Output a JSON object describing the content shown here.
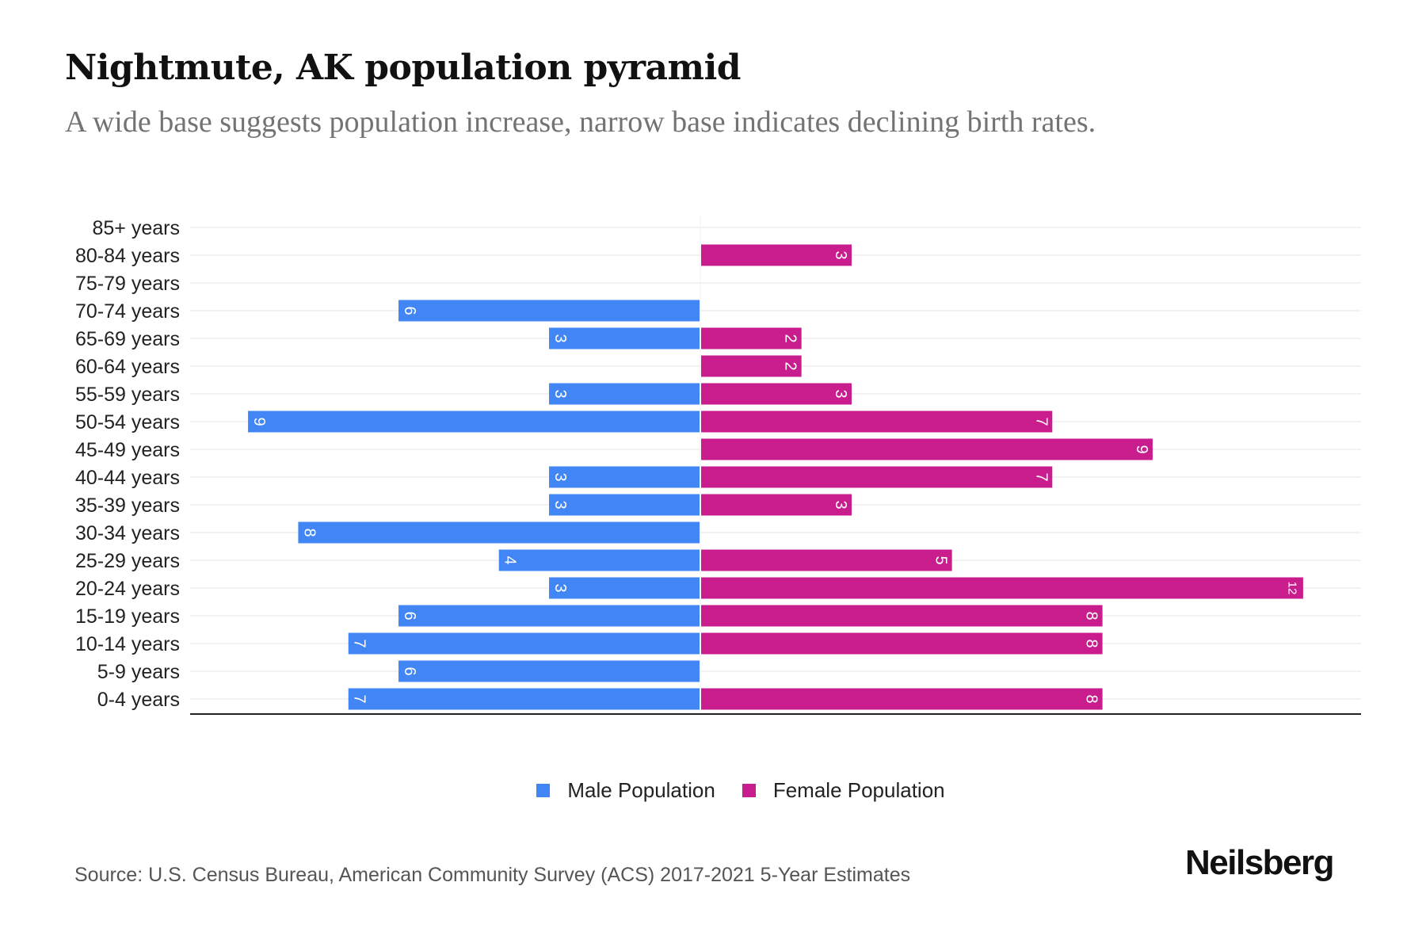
{
  "header": {
    "title": "Nightmute, AK population pyramid",
    "subtitle": "A wide base suggests population increase, narrow base indicates declining birth rates."
  },
  "legend": {
    "male_label": "Male Population",
    "female_label": "Female Population"
  },
  "footer": {
    "source": "Source: U.S. Census Bureau, American Community Survey (ACS) 2017-2021 5-Year Estimates",
    "logo": "Neilsberg"
  },
  "colors": {
    "male": "#4285F4",
    "female": "#C91D8E",
    "grid": "#eeeeee",
    "axis": "#222222"
  },
  "chart_data": {
    "type": "bar",
    "orientation": "horizontal",
    "subtype": "population-pyramid",
    "title": "Nightmute, AK population pyramid",
    "subtitle": "A wide base suggests population increase, narrow base indicates declining birth rates.",
    "xlabel": "",
    "ylabel": "",
    "categories": [
      "85+ years",
      "80-84 years",
      "75-79 years",
      "70-74 years",
      "65-69 years",
      "60-64 years",
      "55-59 years",
      "50-54 years",
      "45-49 years",
      "40-44 years",
      "35-39 years",
      "30-34 years",
      "25-29 years",
      "20-24 years",
      "15-19 years",
      "10-14 years",
      "5-9 years",
      "0-4 years"
    ],
    "series": [
      {
        "name": "Male Population",
        "side": "left",
        "values": [
          0,
          0,
          0,
          6,
          3,
          0,
          3,
          9,
          0,
          3,
          3,
          8,
          4,
          3,
          6,
          7,
          6,
          7
        ]
      },
      {
        "name": "Female Population",
        "side": "right",
        "values": [
          0,
          3,
          0,
          0,
          2,
          2,
          3,
          7,
          9,
          7,
          3,
          0,
          5,
          12,
          8,
          8,
          0,
          8
        ]
      }
    ],
    "xlim": [
      -10.17,
      13.17
    ],
    "grid": true,
    "data_labels": true,
    "legend_position": "bottom-center",
    "source": "Source: U.S. Census Bureau, American Community Survey (ACS) 2017-2021 5-Year Estimates"
  }
}
